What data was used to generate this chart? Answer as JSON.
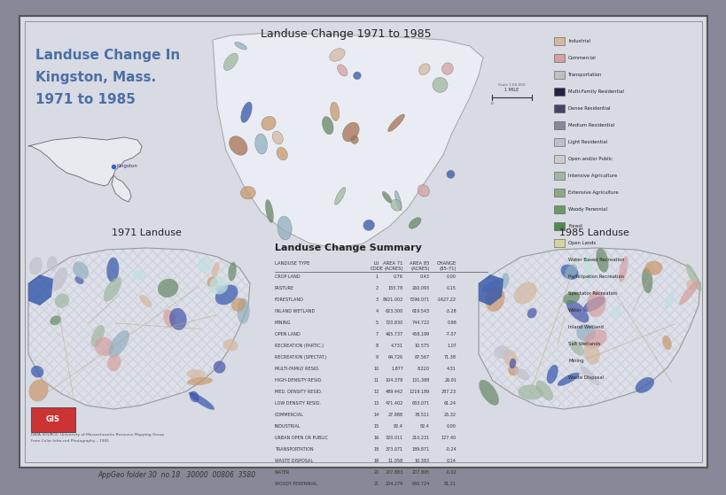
{
  "title_main": "Landuse Change In\nKingston, Mass.\n1971 to 1985",
  "title_center_map": "Landuse Change 1971 to 1985",
  "title_left_map": "1971 Landuse",
  "title_right_map": "1985 Landuse",
  "title_table": "Landuse Change Summary",
  "title_color": "#4a6fa5",
  "text_color": "#333344",
  "outer_bg": "#888899",
  "inner_bg": "#d8dae4",
  "map_fill": "#e2e4ec",
  "map_border": "#888888",
  "legend_items": [
    {
      "label": "Industrial",
      "color": "#d4b8a0"
    },
    {
      "label": "Commercial",
      "color": "#d4a0a0"
    },
    {
      "label": "Transportation",
      "color": "#c0c0c0"
    },
    {
      "label": "Multi-Family Residential",
      "color": "#222244"
    },
    {
      "label": "Dense Residential",
      "color": "#444466"
    },
    {
      "label": "Medium Residential",
      "color": "#888899"
    },
    {
      "label": "Light Residential",
      "color": "#c0c0cc"
    },
    {
      "label": "Open and/or Public",
      "color": "#cccccc"
    },
    {
      "label": "Intensive Agriculture",
      "color": "#a0b8a0"
    },
    {
      "label": "Extensive Agriculture",
      "color": "#88aa88"
    },
    {
      "label": "Woody Perennial",
      "color": "#6a9a6a"
    },
    {
      "label": "Forest",
      "color": "#508850"
    },
    {
      "label": "Open Lands",
      "color": "#d4d4a0"
    },
    {
      "label": "Water Based Recreation",
      "color": "#a0c0d4"
    },
    {
      "label": "Participation Recreation",
      "color": "#b0d0e0"
    },
    {
      "label": "Spectator Recreation",
      "color": "#c0e0e0"
    },
    {
      "label": "Water",
      "color": "#3355aa"
    },
    {
      "label": "Inland Wetland",
      "color": "#90b0c0"
    },
    {
      "label": "Salt Wetlands",
      "color": "#b0c4d4"
    },
    {
      "label": "Mining",
      "color": "#c8986a"
    },
    {
      "label": "Waste Disposal",
      "color": "#a87050"
    }
  ],
  "table_rows": [
    [
      "CROP LAND",
      "1",
      "0.76",
      "0.43",
      "0.00"
    ],
    [
      "PASTURE",
      "2",
      "155.78",
      "260.093",
      "0.15"
    ],
    [
      "FORESTLAND",
      "3",
      "8921.002",
      "7296.071",
      "-1627.22"
    ],
    [
      "INLAND WETLAND",
      "4",
      "623.300",
      "619.543",
      "-3.28"
    ],
    [
      "MINING",
      "5",
      "720.830",
      "744.722",
      "0.98"
    ],
    [
      "OPEN LAND",
      "7",
      "465.737",
      "458.199",
      "-7.07"
    ],
    [
      "RECREATION (PARTIC.)",
      "8",
      "4.731",
      "10.575",
      "1.07"
    ],
    [
      "RECREATION (SPECTAT.)",
      "9",
      "64.726",
      "67.567",
      "71.38"
    ],
    [
      "MULTI-FAMILY RESID.",
      "10",
      "1.877",
      "8.220",
      "4.31"
    ],
    [
      "HIGH-DENSITY RESID.",
      "11",
      "104.378",
      "131.388",
      "26.91"
    ],
    [
      "MED. DENSITY RESID.",
      "12",
      "489.442",
      "1219.189",
      "287.23"
    ],
    [
      "LOW DENSITY RESID.",
      "13",
      "471.402",
      "633.071",
      "61.24"
    ],
    [
      "COMMERCIAL",
      "14",
      "27.988",
      "38.511",
      "25.32"
    ],
    [
      "INDUSTRIAL",
      "15",
      "82.4",
      "82.4",
      "0.00"
    ],
    [
      "URBAN OPEN OR PUBLIC",
      "16",
      "320.011",
      "210.231",
      "127.40"
    ],
    [
      "TRANSPORTATION",
      "18",
      "373.071",
      "189.871",
      "-0.24"
    ],
    [
      "WASTE DISPOSAL",
      "19",
      "11.058",
      "10.383",
      "0.14"
    ],
    [
      "WATER",
      "20",
      "227.883",
      "207.895",
      "-0.02"
    ],
    [
      "WOODY PERENNIAL",
      "21",
      "204.279",
      "630.724",
      "81.21"
    ]
  ]
}
